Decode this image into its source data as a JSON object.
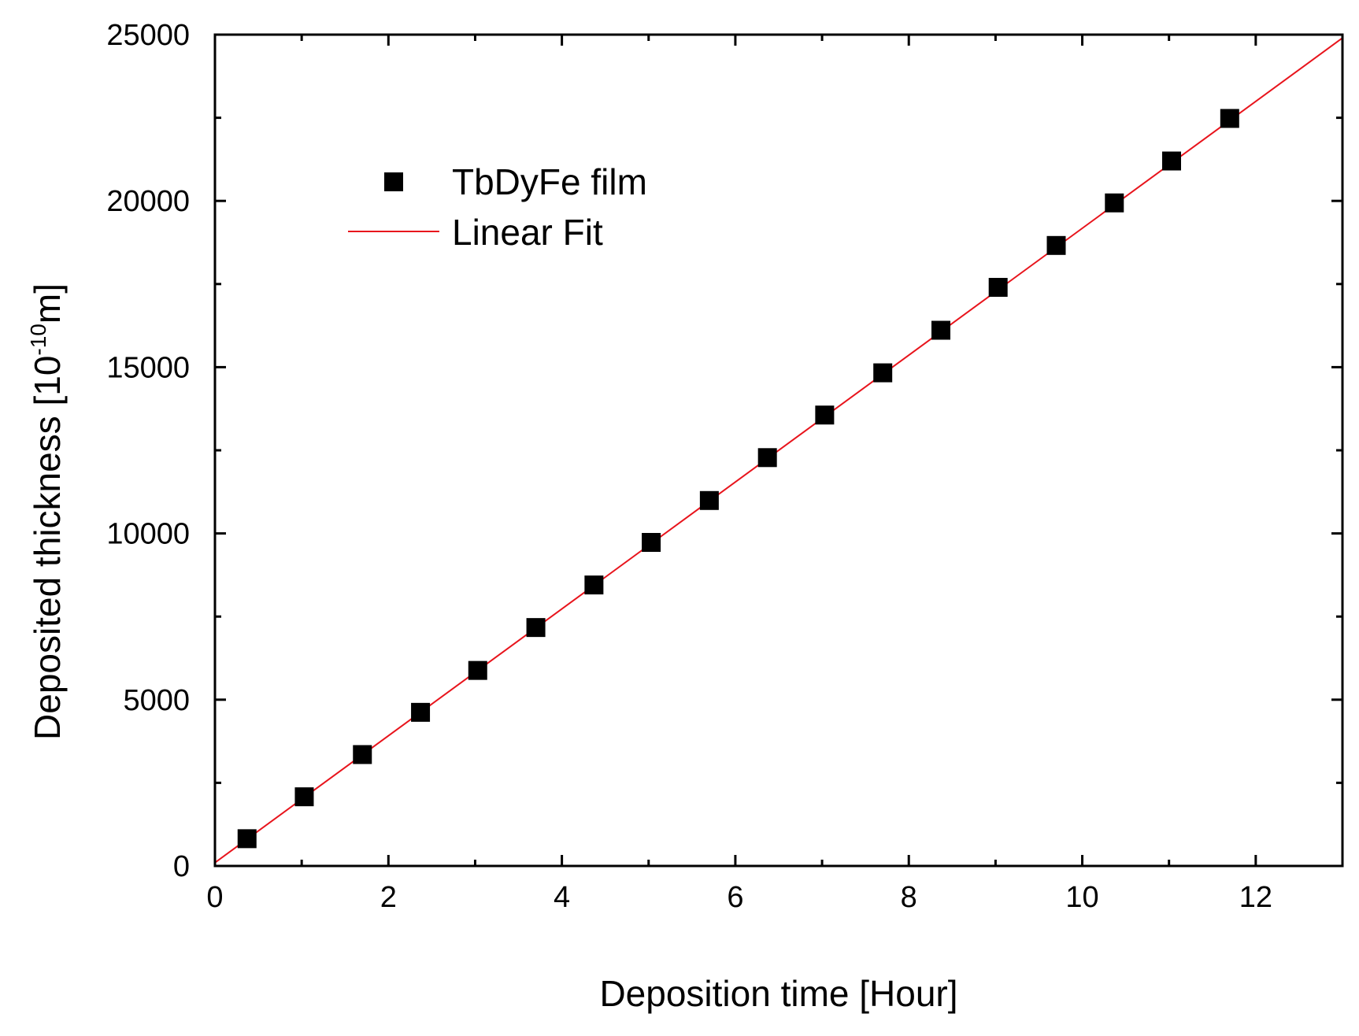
{
  "chart_data": {
    "type": "scatter",
    "xlabel": "Deposition time [Hour]",
    "ylabel": {
      "prefix": "Deposited thickness [10",
      "superscript": "-10",
      "suffix": "m]"
    },
    "xlim": [
      0,
      13
    ],
    "ylim": [
      0,
      25000
    ],
    "x_ticks": [
      0,
      2,
      4,
      6,
      8,
      10,
      12
    ],
    "x_minor_ticks": [
      1,
      3,
      5,
      7,
      9,
      11,
      13
    ],
    "y_ticks": [
      0,
      5000,
      10000,
      15000,
      20000,
      25000
    ],
    "y_minor_ticks": [
      2500,
      7500,
      12500,
      17500,
      22500
    ],
    "series": [
      {
        "name": "TbDyFe film",
        "kind": "scatter",
        "color": "#000000",
        "marker": "square",
        "x": [
          0.37,
          1.03,
          1.7,
          2.37,
          3.03,
          3.7,
          4.37,
          5.03,
          5.7,
          6.37,
          7.03,
          7.7,
          8.37,
          9.03,
          9.7,
          10.37,
          11.03,
          11.7
        ],
        "y": [
          820,
          2080,
          3350,
          4620,
          5880,
          7170,
          8450,
          9730,
          10990,
          12280,
          13560,
          14830,
          16110,
          17400,
          18660,
          19940,
          21200,
          22480
        ]
      },
      {
        "name": "Linear Fit",
        "kind": "line",
        "color": "#e8141c",
        "x": [
          0,
          13
        ],
        "y": [
          100,
          24900
        ]
      }
    ],
    "legend": {
      "position": "top-left",
      "entries": [
        "TbDyFe film",
        "Linear Fit"
      ]
    }
  }
}
